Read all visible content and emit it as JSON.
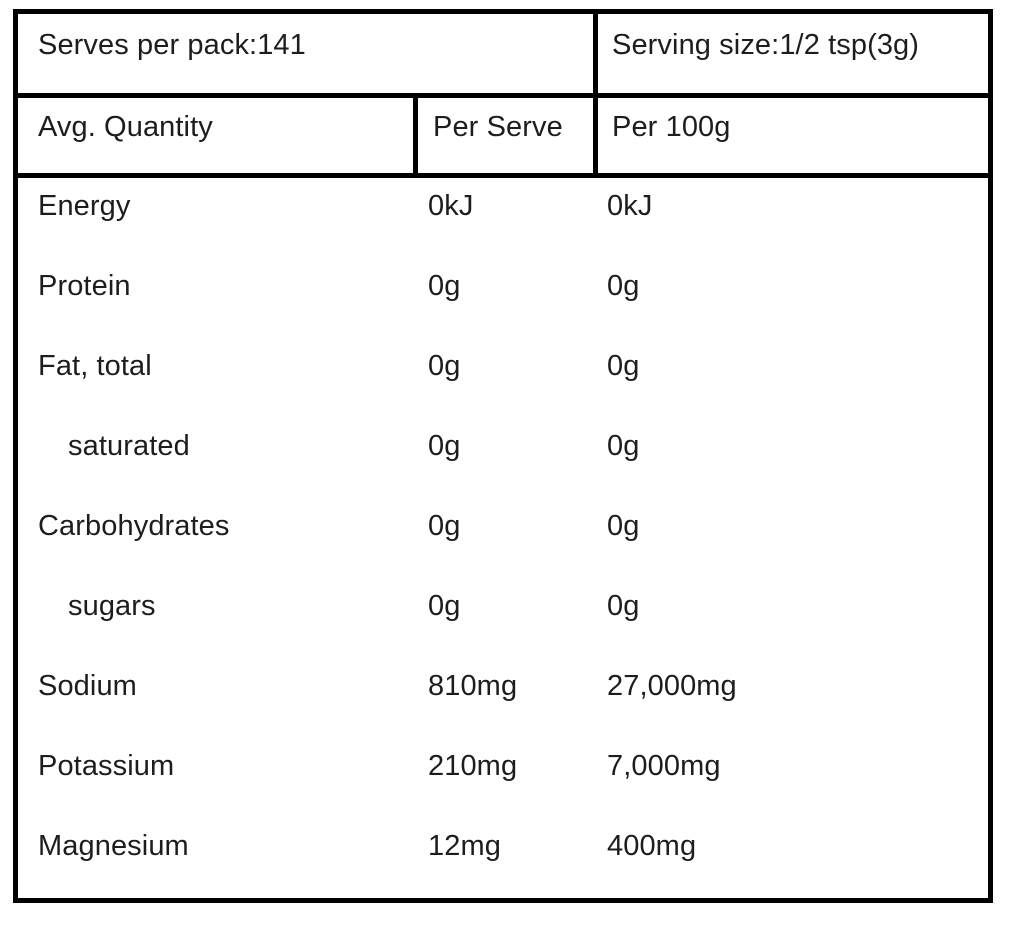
{
  "panel": {
    "serves_per_pack": "Serves per pack:141",
    "serving_size": "Serving size:1/2 tsp(3g)",
    "columns": {
      "avg_quantity": "Avg. Quantity",
      "per_serve": "Per Serve",
      "per_100g": "Per 100g"
    },
    "rows": [
      {
        "name": "Energy",
        "per_serve": "0kJ",
        "per_100g": "0kJ",
        "indent": false
      },
      {
        "name": "Protein",
        "per_serve": "0g",
        "per_100g": "0g",
        "indent": false
      },
      {
        "name": "Fat, total",
        "per_serve": "0g",
        "per_100g": "0g",
        "indent": false
      },
      {
        "name": "saturated",
        "per_serve": "0g",
        "per_100g": "0g",
        "indent": true
      },
      {
        "name": "Carbohydrates",
        "per_serve": "0g",
        "per_100g": "0g",
        "indent": false
      },
      {
        "name": "sugars",
        "per_serve": "0g",
        "per_100g": "0g",
        "indent": true
      },
      {
        "name": "Sodium",
        "per_serve": "810mg",
        "per_100g": "27,000mg",
        "indent": false
      },
      {
        "name": "Potassium",
        "per_serve": "210mg",
        "per_100g": "7,000mg",
        "indent": false
      },
      {
        "name": "Magnesium",
        "per_serve": "12mg",
        "per_100g": "400mg",
        "indent": false
      }
    ]
  },
  "colors": {
    "border": "#000000",
    "text": "#1d1d1b",
    "background": "#ffffff"
  }
}
